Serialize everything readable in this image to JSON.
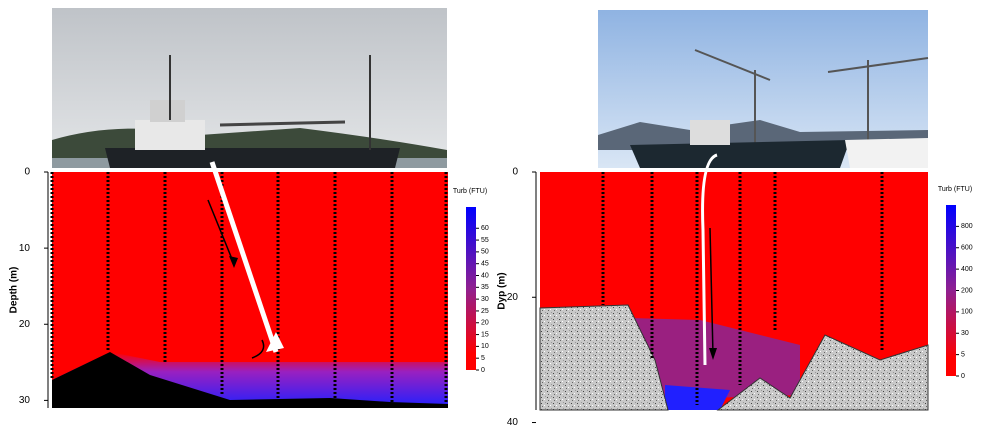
{
  "chart_data": [
    {
      "type": "contour",
      "ylabel": "Depth (m)",
      "ylim": [
        0,
        31
      ],
      "yticks": [
        0,
        10,
        20,
        30
      ],
      "colorbar": {
        "label": "Turb (FTU)",
        "clim": [
          0,
          69
        ],
        "ticks": [
          0,
          5,
          10,
          15,
          20,
          25,
          30,
          35,
          40,
          45,
          50,
          55,
          60
        ]
      }
    },
    {
      "type": "contour",
      "ylabel": "Dyp (m)",
      "ylim": [
        0,
        38
      ],
      "yticks": [
        0,
        20,
        40
      ],
      "colorbar": {
        "label": "Turb (FTU)",
        "ticks": [
          0,
          5,
          30,
          100,
          200,
          400,
          600,
          800
        ]
      }
    }
  ]
}
